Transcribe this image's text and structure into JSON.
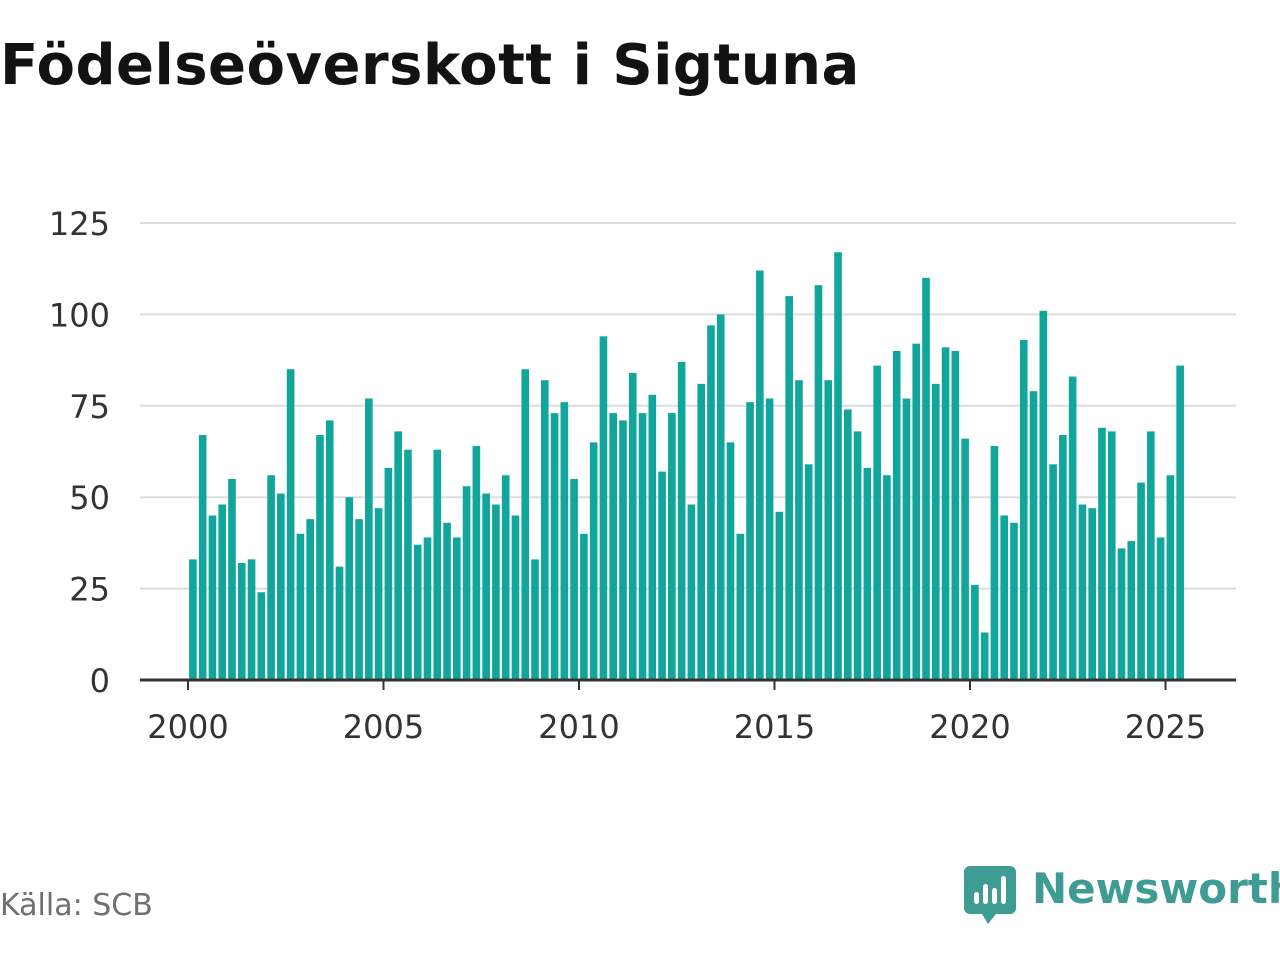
{
  "title": "Födelseöverskott i Sigtuna",
  "source": "Källa: SCB",
  "brand": {
    "name": "Newsworthy",
    "icon": "newsworthy-logo-icon",
    "color": "#3f9c94"
  },
  "colors": {
    "bar": "#11a69c",
    "grid": "#dddddd",
    "axis": "#333333",
    "text": "#333333",
    "title": "#121212"
  },
  "chart_data": {
    "type": "bar",
    "title": "Födelseöverskott i Sigtuna",
    "xlabel": "",
    "ylabel": "",
    "ylim": [
      0,
      125
    ],
    "yticks": [
      0,
      25,
      50,
      75,
      100,
      125
    ],
    "xlim": [
      2000,
      2025.85
    ],
    "xticks": [
      2000,
      2005,
      2010,
      2015,
      2020,
      2025
    ],
    "grid": true,
    "frequency": "quarterly",
    "start": "2000 Q1",
    "values": [
      33,
      67,
      45,
      48,
      55,
      32,
      33,
      24,
      56,
      51,
      85,
      40,
      44,
      67,
      71,
      31,
      50,
      44,
      77,
      47,
      58,
      68,
      63,
      37,
      39,
      63,
      43,
      39,
      53,
      64,
      51,
      48,
      56,
      45,
      85,
      33,
      82,
      73,
      76,
      55,
      40,
      65,
      94,
      73,
      71,
      84,
      73,
      78,
      57,
      73,
      87,
      48,
      81,
      97,
      100,
      65,
      40,
      76,
      112,
      77,
      46,
      105,
      82,
      59,
      108,
      82,
      117,
      74,
      68,
      58,
      86,
      56,
      90,
      77,
      92,
      110,
      81,
      91,
      90,
      66,
      26,
      13,
      64,
      45,
      43,
      93,
      79,
      101,
      59,
      67,
      83,
      48,
      47,
      69,
      68,
      36,
      38,
      54,
      68,
      39,
      56,
      86
    ]
  }
}
